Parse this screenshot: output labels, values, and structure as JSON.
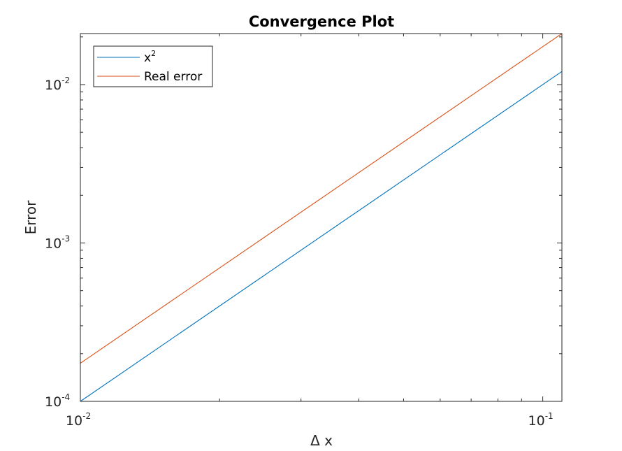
{
  "chart_data": {
    "type": "line",
    "title": "Convergence Plot",
    "xlabel": "Δ x",
    "ylabel": "Error",
    "xscale": "log",
    "yscale": "log",
    "xlim": [
      0.01,
      0.11
    ],
    "ylim": [
      0.0001,
      0.021
    ],
    "grid": false,
    "legend_position": "top-left",
    "x_ticks": [
      {
        "value": 0.01,
        "base": "10",
        "exp": "-2"
      },
      {
        "value": 0.1,
        "base": "10",
        "exp": "-1"
      }
    ],
    "y_ticks": [
      {
        "value": 0.0001,
        "base": "10",
        "exp": "-4"
      },
      {
        "value": 0.001,
        "base": "10",
        "exp": "-3"
      },
      {
        "value": 0.01,
        "base": "10",
        "exp": "-2"
      }
    ],
    "series": [
      {
        "name": "x",
        "name_superscript": "2",
        "color": "#0072BD",
        "x": [
          0.01,
          0.11
        ],
        "y": [
          0.0001,
          0.0121
        ]
      },
      {
        "name": "Real error",
        "name_superscript": "",
        "color": "#D95319",
        "x": [
          0.01,
          0.11
        ],
        "y": [
          0.000174,
          0.021
        ]
      }
    ]
  }
}
